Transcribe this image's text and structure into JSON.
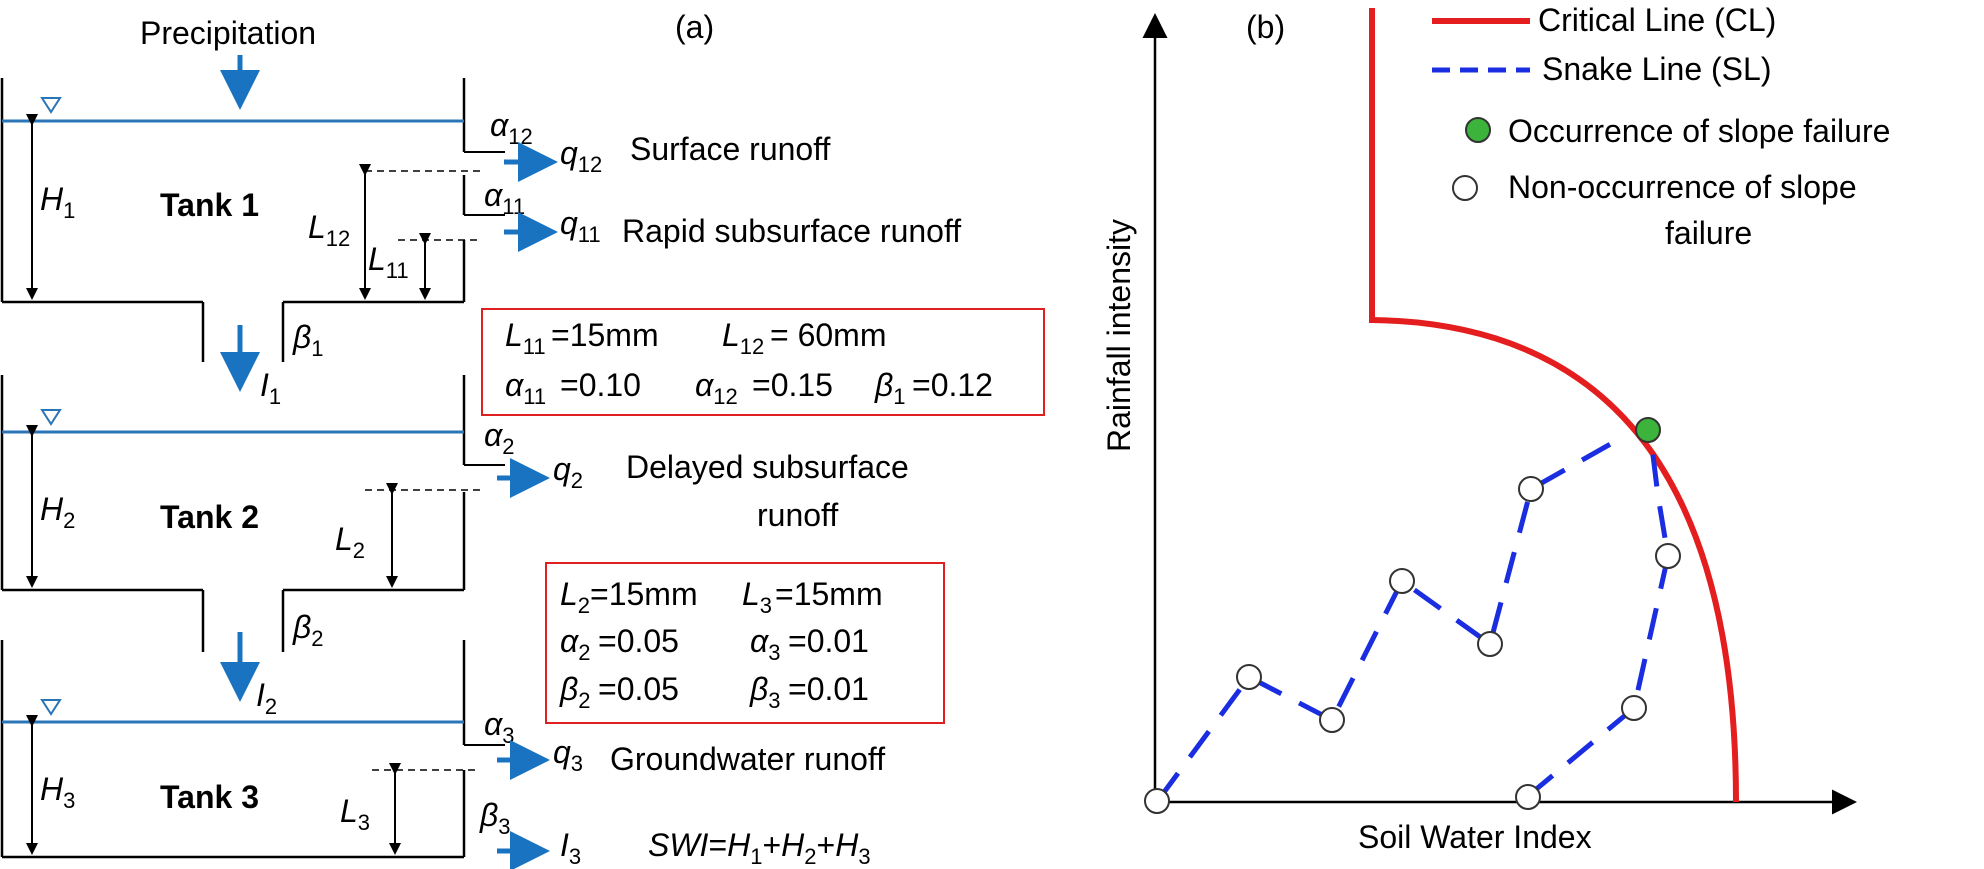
{
  "panel_a": {
    "label": "(a)",
    "precipitation": "Precipitation",
    "tank1": "Tank 1",
    "tank2": "Tank 2",
    "tank3": "Tank 3",
    "surface_runoff": "Surface runoff",
    "rapid_runoff": "Rapid subsurface runoff",
    "delayed_runoff_line1": "Delayed subsurface",
    "delayed_runoff_line2": "runoff",
    "groundwater_runoff": "Groundwater runoff",
    "box1": {
      "L11": "=15mm",
      "L12": "= 60mm",
      "a11": "=0.10",
      "a12": "=0.15",
      "b1": "=0.12"
    },
    "box2": {
      "L2": "=15mm",
      "L3": "=15mm",
      "a2": "=0.05",
      "a3": "=0.01",
      "b2": "=0.05",
      "b3": "=0.01"
    },
    "swi_formula": "SWI=H1+H2+H3"
  },
  "panel_b": {
    "label": "(b)",
    "xlabel": "Soil Water Index",
    "ylabel": "Rainfall intensity",
    "legend": {
      "critical_line": "Critical Line (CL)",
      "snake_line": "Snake Line (SL)",
      "occurrence": "Occurrence of slope failure",
      "non_occurrence_1": "Non-occurrence of slope",
      "non_occurrence_2": "failure"
    },
    "colors": {
      "critical_line": "#e41e1e",
      "snake_line": "#1b2de0",
      "occurrence": "#3cb43c",
      "arrows": "#1a73c0",
      "water_line": "#2a74b8"
    }
  }
}
